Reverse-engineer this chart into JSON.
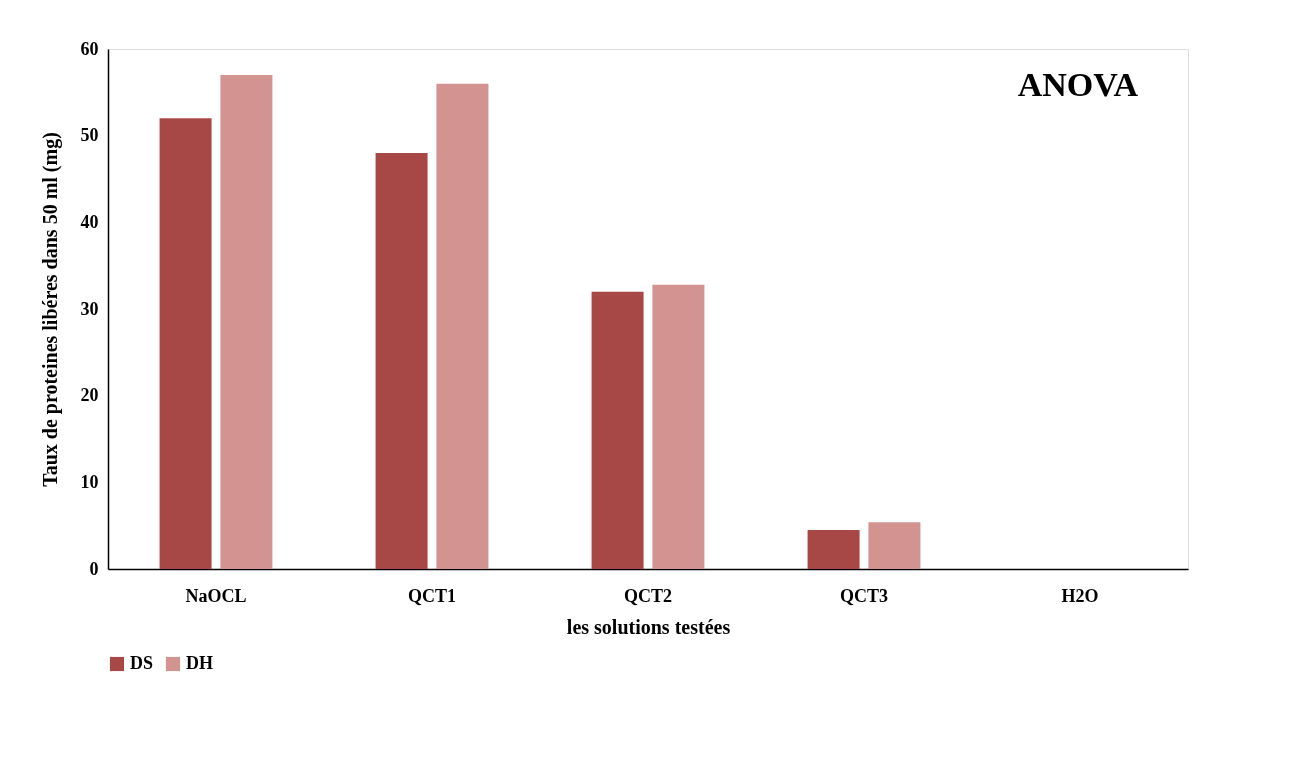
{
  "chart_data": {
    "type": "bar",
    "xlabel": "les solutions testées",
    "ylabel": "Taux de proteines libéres dans 50 ml (mg)",
    "categories": [
      "NaOCL",
      "QCT1",
      "QCT2",
      "QCT3",
      "H2O"
    ],
    "series": [
      {
        "name": "DS",
        "color": "#a84846",
        "values": [
          52,
          48,
          32,
          4.5,
          0
        ]
      },
      {
        "name": "DH",
        "color": "#d39391",
        "values": [
          57,
          56,
          32.8,
          5.4,
          0
        ]
      }
    ],
    "ylim": [
      0,
      60
    ],
    "yticks": [
      0,
      10,
      20,
      30,
      40,
      50,
      60
    ],
    "annotations": [
      "ANOVA"
    ],
    "grid": false,
    "legend": "bottom"
  }
}
